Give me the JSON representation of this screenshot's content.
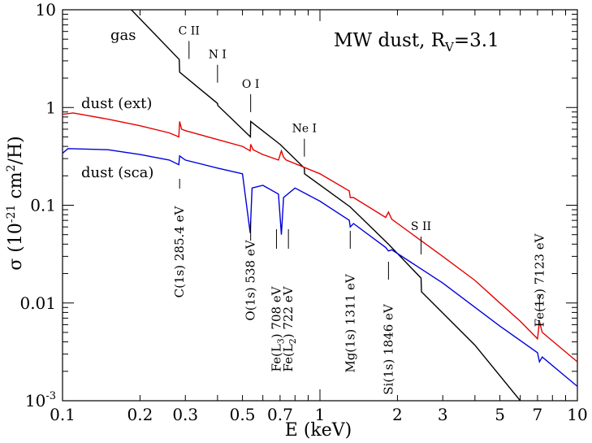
{
  "chart_data": {
    "type": "line",
    "title": "MW dust, R",
    "title_subscript": "V",
    "title_suffix": "=3.1",
    "xlabel": "E (keV)",
    "ylabel_parts": [
      "σ (10",
      "-21",
      " cm",
      "2",
      "/H)"
    ],
    "x_scale": "log",
    "y_scale": "log",
    "xlim": [
      0.1,
      10
    ],
    "ylim": [
      0.001,
      10
    ],
    "grid": false,
    "x_ticks": [
      {
        "v": 0.1,
        "label": "0.1"
      },
      {
        "v": 0.2,
        "label": "0.2"
      },
      {
        "v": 0.3,
        "label": "0.3"
      },
      {
        "v": 0.5,
        "label": "0.5"
      },
      {
        "v": 0.7,
        "label": "0.7"
      },
      {
        "v": 1,
        "label": "1"
      },
      {
        "v": 2,
        "label": "2"
      },
      {
        "v": 3,
        "label": "3"
      },
      {
        "v": 5,
        "label": "5"
      },
      {
        "v": 7,
        "label": "7"
      },
      {
        "v": 10,
        "label": "10"
      }
    ],
    "y_ticks": [
      {
        "v": 10,
        "label": "10"
      },
      {
        "v": 1,
        "label": "1"
      },
      {
        "v": 0.1,
        "label": "0.1"
      },
      {
        "v": 0.01,
        "label": "0.01"
      },
      {
        "v": 0.001,
        "label": "10",
        "sup": "-3"
      }
    ],
    "series": [
      {
        "name": "gas",
        "color": "#000000",
        "points": [
          [
            0.185,
            10
          ],
          [
            0.284,
            3.1
          ],
          [
            0.285,
            2.3
          ],
          [
            0.4,
            1.1
          ],
          [
            0.401,
            1.05
          ],
          [
            0.537,
            0.5
          ],
          [
            0.538,
            0.72
          ],
          [
            0.7,
            0.42
          ],
          [
            0.87,
            0.24
          ],
          [
            0.871,
            0.21
          ],
          [
            1.311,
            0.096
          ],
          [
            1.846,
            0.04
          ],
          [
            2.47,
            0.018
          ],
          [
            2.48,
            0.013
          ],
          [
            4.0,
            0.0037
          ],
          [
            6.0,
            0.001
          ]
        ]
      },
      {
        "name": "dust (ext)",
        "color": "#e60000",
        "points": [
          [
            0.1,
            0.85
          ],
          [
            0.11,
            0.88
          ],
          [
            0.15,
            0.76
          ],
          [
            0.2,
            0.65
          ],
          [
            0.26,
            0.55
          ],
          [
            0.283,
            0.5
          ],
          [
            0.285,
            0.72
          ],
          [
            0.29,
            0.6
          ],
          [
            0.3,
            0.58
          ],
          [
            0.4,
            0.47
          ],
          [
            0.5,
            0.4
          ],
          [
            0.536,
            0.36
          ],
          [
            0.538,
            0.42
          ],
          [
            0.55,
            0.37
          ],
          [
            0.6,
            0.33
          ],
          [
            0.69,
            0.29
          ],
          [
            0.708,
            0.36
          ],
          [
            0.722,
            0.31
          ],
          [
            0.74,
            0.29
          ],
          [
            1.0,
            0.21
          ],
          [
            1.3,
            0.14
          ],
          [
            1.311,
            0.12
          ],
          [
            1.35,
            0.12
          ],
          [
            1.8,
            0.075
          ],
          [
            1.846,
            0.085
          ],
          [
            1.9,
            0.072
          ],
          [
            3.0,
            0.03
          ],
          [
            4.0,
            0.017
          ],
          [
            5.0,
            0.01
          ],
          [
            6.0,
            0.0065
          ],
          [
            7.0,
            0.0043
          ],
          [
            7.123,
            0.0065
          ],
          [
            7.3,
            0.005
          ],
          [
            10,
            0.0025
          ]
        ]
      },
      {
        "name": "dust (sca)",
        "color": "#0000dd",
        "points": [
          [
            0.1,
            0.34
          ],
          [
            0.105,
            0.38
          ],
          [
            0.15,
            0.37
          ],
          [
            0.2,
            0.33
          ],
          [
            0.26,
            0.29
          ],
          [
            0.283,
            0.26
          ],
          [
            0.285,
            0.32
          ],
          [
            0.3,
            0.29
          ],
          [
            0.4,
            0.24
          ],
          [
            0.5,
            0.21
          ],
          [
            0.536,
            0.052
          ],
          [
            0.545,
            0.15
          ],
          [
            0.6,
            0.16
          ],
          [
            0.69,
            0.13
          ],
          [
            0.708,
            0.05
          ],
          [
            0.722,
            0.12
          ],
          [
            0.8,
            0.15
          ],
          [
            1.0,
            0.11
          ],
          [
            1.3,
            0.07
          ],
          [
            1.311,
            0.06
          ],
          [
            1.35,
            0.065
          ],
          [
            1.8,
            0.037
          ],
          [
            1.846,
            0.034
          ],
          [
            1.9,
            0.035
          ],
          [
            3.0,
            0.016
          ],
          [
            5.0,
            0.0058
          ],
          [
            7.0,
            0.0031
          ],
          [
            7.123,
            0.0025
          ],
          [
            7.3,
            0.0028
          ],
          [
            10,
            0.0014
          ]
        ]
      }
    ],
    "series_labels": [
      {
        "text": "gas",
        "color": "#000000"
      },
      {
        "text": "dust (ext)",
        "color": "#e60000"
      },
      {
        "text": "dust (sca)",
        "color": "#0000dd"
      }
    ],
    "edge_markers": [
      {
        "label": "C II",
        "x": 0.31,
        "y_line": 2.8
      },
      {
        "label": "N I",
        "x": 0.4,
        "y_line": 1.6
      },
      {
        "label": "O I",
        "x": 0.538,
        "y_line": 0.8
      },
      {
        "label": "Ne I",
        "x": 0.87,
        "y_line": 0.28
      },
      {
        "label": "S II",
        "x": 2.47,
        "y_line": 0.028
      }
    ],
    "feature_labels": [
      {
        "label": "C(1s) 285.4 eV",
        "x": 0.285
      },
      {
        "label": "O(1s) 538 eV",
        "x": 0.538
      },
      {
        "label": "Fe(L",
        "sub": "3",
        "tail": ") 708 eV",
        "x": 0.708
      },
      {
        "label": "Fe(L",
        "sub": "2",
        "tail": ") 722 eV",
        "x": 0.722
      },
      {
        "label": "Mg(1s) 1311 eV",
        "x": 1.311
      },
      {
        "label": "Si(1s) 1846 eV",
        "x": 1.846
      },
      {
        "label": "Fe(1s) 7123 eV",
        "x": 7.123
      }
    ]
  }
}
